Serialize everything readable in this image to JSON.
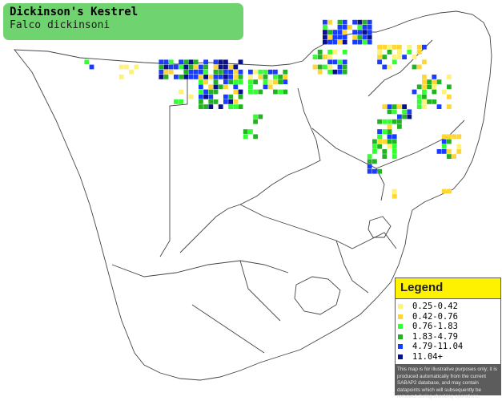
{
  "title": {
    "common_name": "Dickinson's Kestrel",
    "scientific_name": "Falco dickinsoni"
  },
  "legend": {
    "heading": "Legend",
    "items": [
      {
        "label": "0.25-0.42",
        "color": "#fff27a"
      },
      {
        "label": "0.42-0.76",
        "color": "#ffd633"
      },
      {
        "label": "0.76-1.83",
        "color": "#33ff33"
      },
      {
        "label": "1.83-4.79",
        "color": "#22b322"
      },
      {
        "label": "4.79-11.04",
        "color": "#1a3cff"
      },
      {
        "label": "11.04+",
        "color": "#0a0f8c"
      }
    ],
    "note": "This map is for illustrative purposes only; it is produced automatically from the current SABAP2 database, and may contain datapoints which will subsequently be removed during checking operations."
  },
  "colors": {
    "title_bg": "#6fd46f",
    "legend_head_bg": "#fff200",
    "legend_panel_bg": "#5c5c5c"
  }
}
